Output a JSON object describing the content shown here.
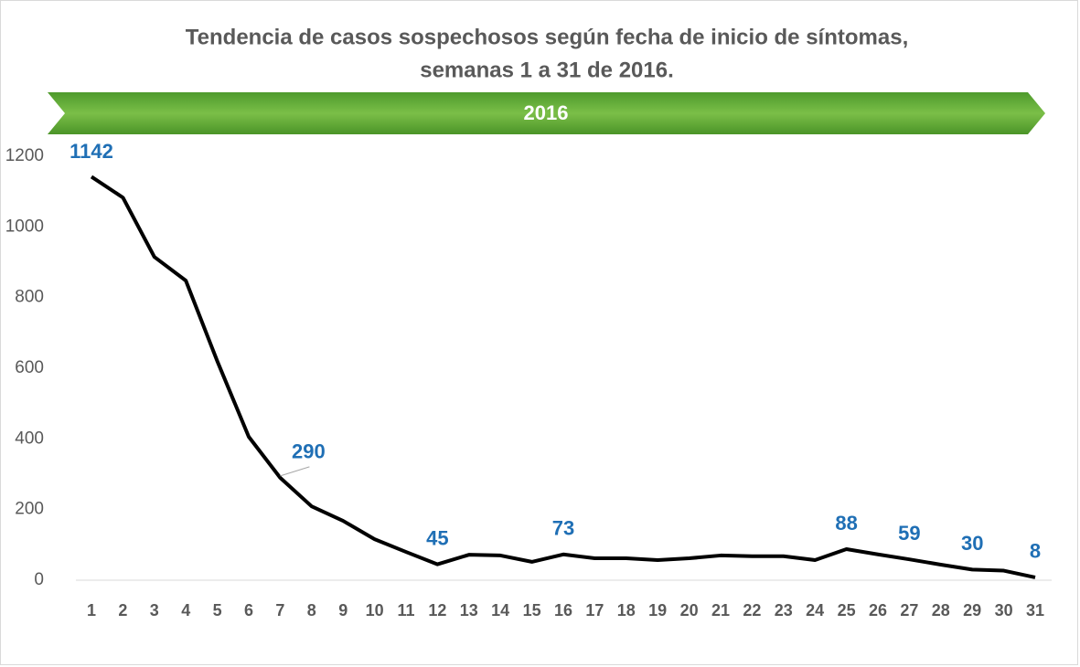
{
  "chart_data": {
    "type": "line",
    "title": "Tendencia de casos sospechosos según fecha de inicio de síntomas,",
    "subtitle": "semanas 1 a 31 de 2016.",
    "banner": "2016",
    "categories": [
      "1",
      "2",
      "3",
      "4",
      "5",
      "6",
      "7",
      "8",
      "9",
      "10",
      "11",
      "12",
      "13",
      "14",
      "15",
      "16",
      "17",
      "18",
      "19",
      "20",
      "21",
      "22",
      "23",
      "24",
      "25",
      "26",
      "27",
      "28",
      "29",
      "30",
      "31"
    ],
    "series": [
      {
        "name": "Casos sospechosos",
        "color": "#000000",
        "values": [
          1142,
          1083,
          915,
          848,
          620,
          406,
          290,
          209,
          168,
          116,
          80,
          45,
          72,
          70,
          52,
          73,
          62,
          62,
          57,
          62,
          70,
          68,
          68,
          57,
          88,
          73,
          59,
          44,
          30,
          27,
          8
        ],
        "value_labels": [
          "1142",
          null,
          null,
          null,
          null,
          null,
          "290",
          null,
          null,
          null,
          null,
          "45",
          null,
          null,
          null,
          "73",
          null,
          null,
          null,
          null,
          null,
          null,
          null,
          null,
          "88",
          null,
          "59",
          null,
          "30",
          null,
          "8"
        ],
        "label_color": "#1f6fb5"
      }
    ],
    "ylim": [
      0,
      1200
    ],
    "yticks": [
      0,
      200,
      400,
      600,
      800,
      1000,
      1200
    ],
    "grid": false
  }
}
